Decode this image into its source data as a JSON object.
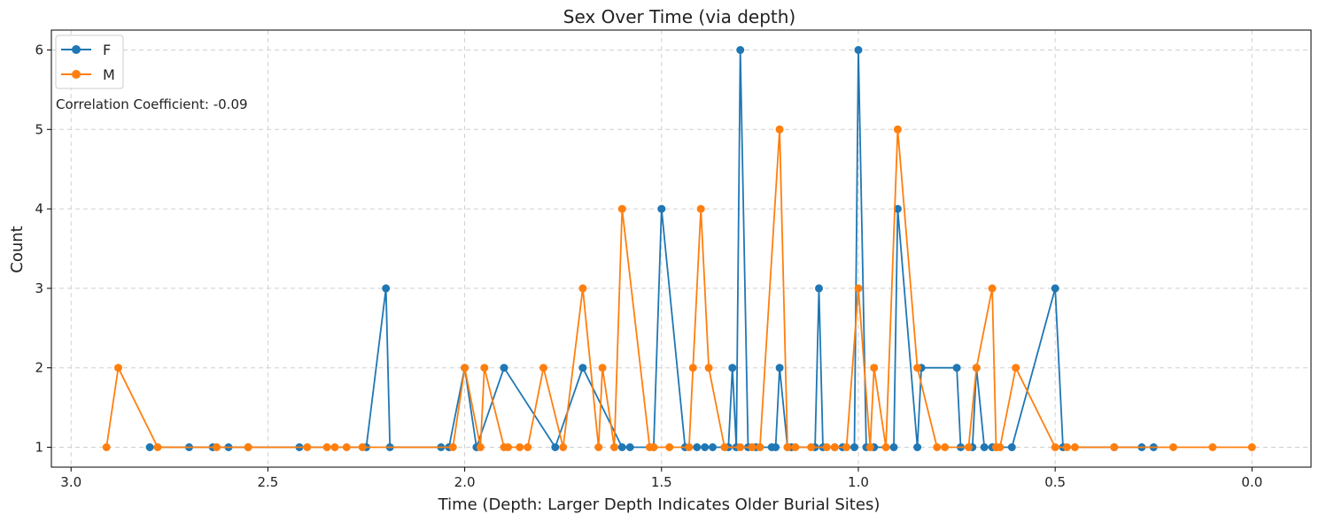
{
  "chart_data": {
    "type": "line",
    "title": "Sex Over Time (via depth)",
    "xlabel": "Time (Depth: Larger Depth Indicates Older Burial Sites)",
    "ylabel": "Count",
    "xlim": [
      3.05,
      -0.15
    ],
    "ylim": [
      0.75,
      6.25
    ],
    "x_reversed": true,
    "xticks": [
      3.0,
      2.5,
      2.0,
      1.5,
      1.0,
      0.5,
      0.0
    ],
    "xtick_labels": [
      "3.0",
      "2.5",
      "2.0",
      "1.5",
      "1.0",
      "0.5",
      "0.0"
    ],
    "yticks": [
      1,
      2,
      3,
      4,
      5,
      6
    ],
    "ytick_labels": [
      "1",
      "2",
      "3",
      "4",
      "5",
      "6"
    ],
    "grid": true,
    "legend_position": "top-left",
    "annotation": "Correlation Coefficient: -0.09",
    "series": [
      {
        "name": "F",
        "color": "#1f77b4",
        "x": [
          2.8,
          2.7,
          2.64,
          2.6,
          2.55,
          2.42,
          2.25,
          2.2,
          2.19,
          2.06,
          2.04,
          2.0,
          1.97,
          1.9,
          1.77,
          1.7,
          1.6,
          1.58,
          1.52,
          1.5,
          1.44,
          1.41,
          1.39,
          1.37,
          1.33,
          1.32,
          1.31,
          1.3,
          1.28,
          1.26,
          1.22,
          1.21,
          1.2,
          1.18,
          1.17,
          1.11,
          1.1,
          1.09,
          1.06,
          1.04,
          1.01,
          1.0,
          0.98,
          0.96,
          0.91,
          0.9,
          0.85,
          0.84,
          0.75,
          0.74,
          0.71,
          0.7,
          0.68,
          0.66,
          0.65,
          0.61,
          0.5,
          0.48,
          0.35,
          0.28,
          0.25
        ],
        "y": [
          1,
          1,
          1,
          1,
          1,
          1,
          1,
          3,
          1,
          1,
          1,
          2,
          1,
          2,
          1,
          2,
          1,
          1,
          1,
          4,
          1,
          1,
          1,
          1,
          1,
          2,
          1,
          6,
          1,
          1,
          1,
          1,
          2,
          1,
          1,
          1,
          3,
          1,
          1,
          1,
          1,
          6,
          1,
          1,
          1,
          4,
          1,
          2,
          2,
          1,
          1,
          2,
          1,
          1,
          1,
          1,
          3,
          1,
          1,
          1,
          1
        ]
      },
      {
        "name": "M",
        "color": "#ff7f0e",
        "x": [
          2.91,
          2.88,
          2.78,
          2.63,
          2.55,
          2.4,
          2.35,
          2.33,
          2.3,
          2.26,
          2.03,
          2.0,
          1.96,
          1.95,
          1.9,
          1.89,
          1.86,
          1.84,
          1.8,
          1.75,
          1.7,
          1.66,
          1.65,
          1.62,
          1.6,
          1.53,
          1.52,
          1.48,
          1.43,
          1.42,
          1.4,
          1.38,
          1.34,
          1.3,
          1.27,
          1.25,
          1.2,
          1.18,
          1.16,
          1.12,
          1.08,
          1.06,
          1.03,
          1.0,
          0.97,
          0.96,
          0.93,
          0.9,
          0.85,
          0.8,
          0.78,
          0.72,
          0.7,
          0.66,
          0.65,
          0.64,
          0.6,
          0.5,
          0.47,
          0.45,
          0.35,
          0.2,
          0.1,
          0.0
        ],
        "y": [
          1,
          2,
          1,
          1,
          1,
          1,
          1,
          1,
          1,
          1,
          1,
          2,
          1,
          2,
          1,
          1,
          1,
          1,
          2,
          1,
          3,
          1,
          2,
          1,
          4,
          1,
          1,
          1,
          1,
          2,
          4,
          2,
          1,
          1,
          1,
          1,
          5,
          1,
          1,
          1,
          1,
          1,
          1,
          3,
          1,
          2,
          1,
          5,
          2,
          1,
          1,
          1,
          2,
          3,
          1,
          1,
          2,
          1,
          1,
          1,
          1,
          1,
          1,
          1
        ]
      }
    ]
  }
}
